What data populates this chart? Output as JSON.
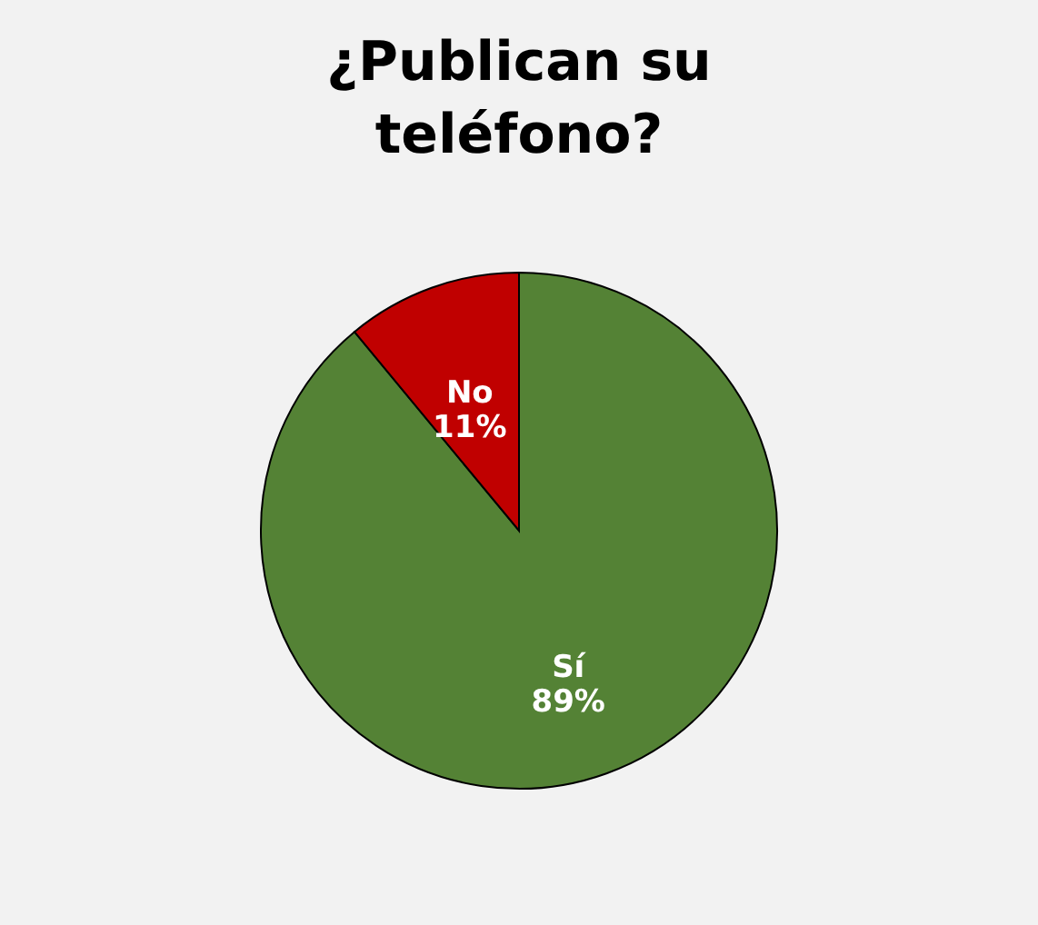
{
  "chart_data": {
    "type": "pie",
    "title": "¿Publican su teléfono?",
    "categories": [
      "Sí",
      "No"
    ],
    "values": [
      89,
      11
    ],
    "colors": [
      "#548235",
      "#c00000"
    ],
    "value_labels": [
      "89%",
      "11%"
    ],
    "legend": false
  }
}
